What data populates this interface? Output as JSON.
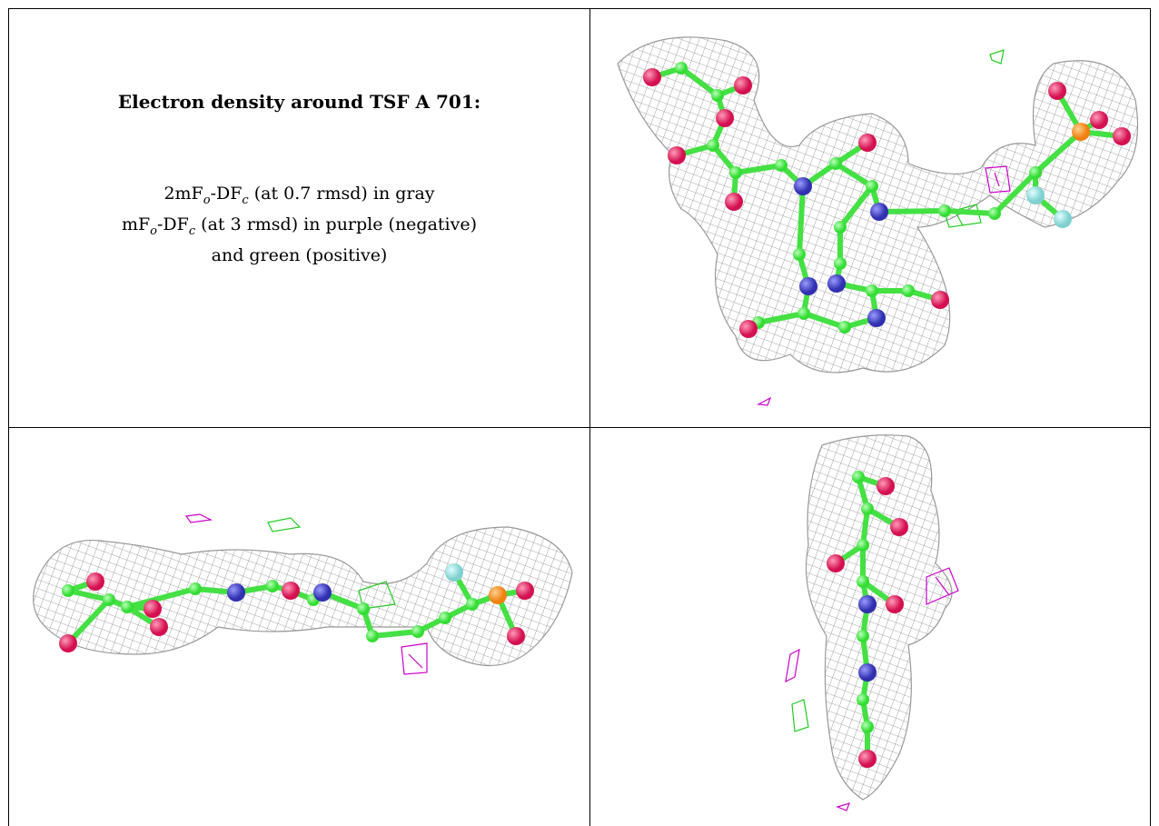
{
  "header": {
    "title": "Electron density around TSF A 701:"
  },
  "legend": {
    "lines": [
      [
        "2mF",
        "o",
        "-DF",
        "c",
        " (at 0.7 rmsd) in gray"
      ],
      [
        "mF",
        "o",
        "-DF",
        "c",
        " (at 3 rmsd) in purple (negative)"
      ],
      [
        "and green (positive)"
      ]
    ]
  }
}
